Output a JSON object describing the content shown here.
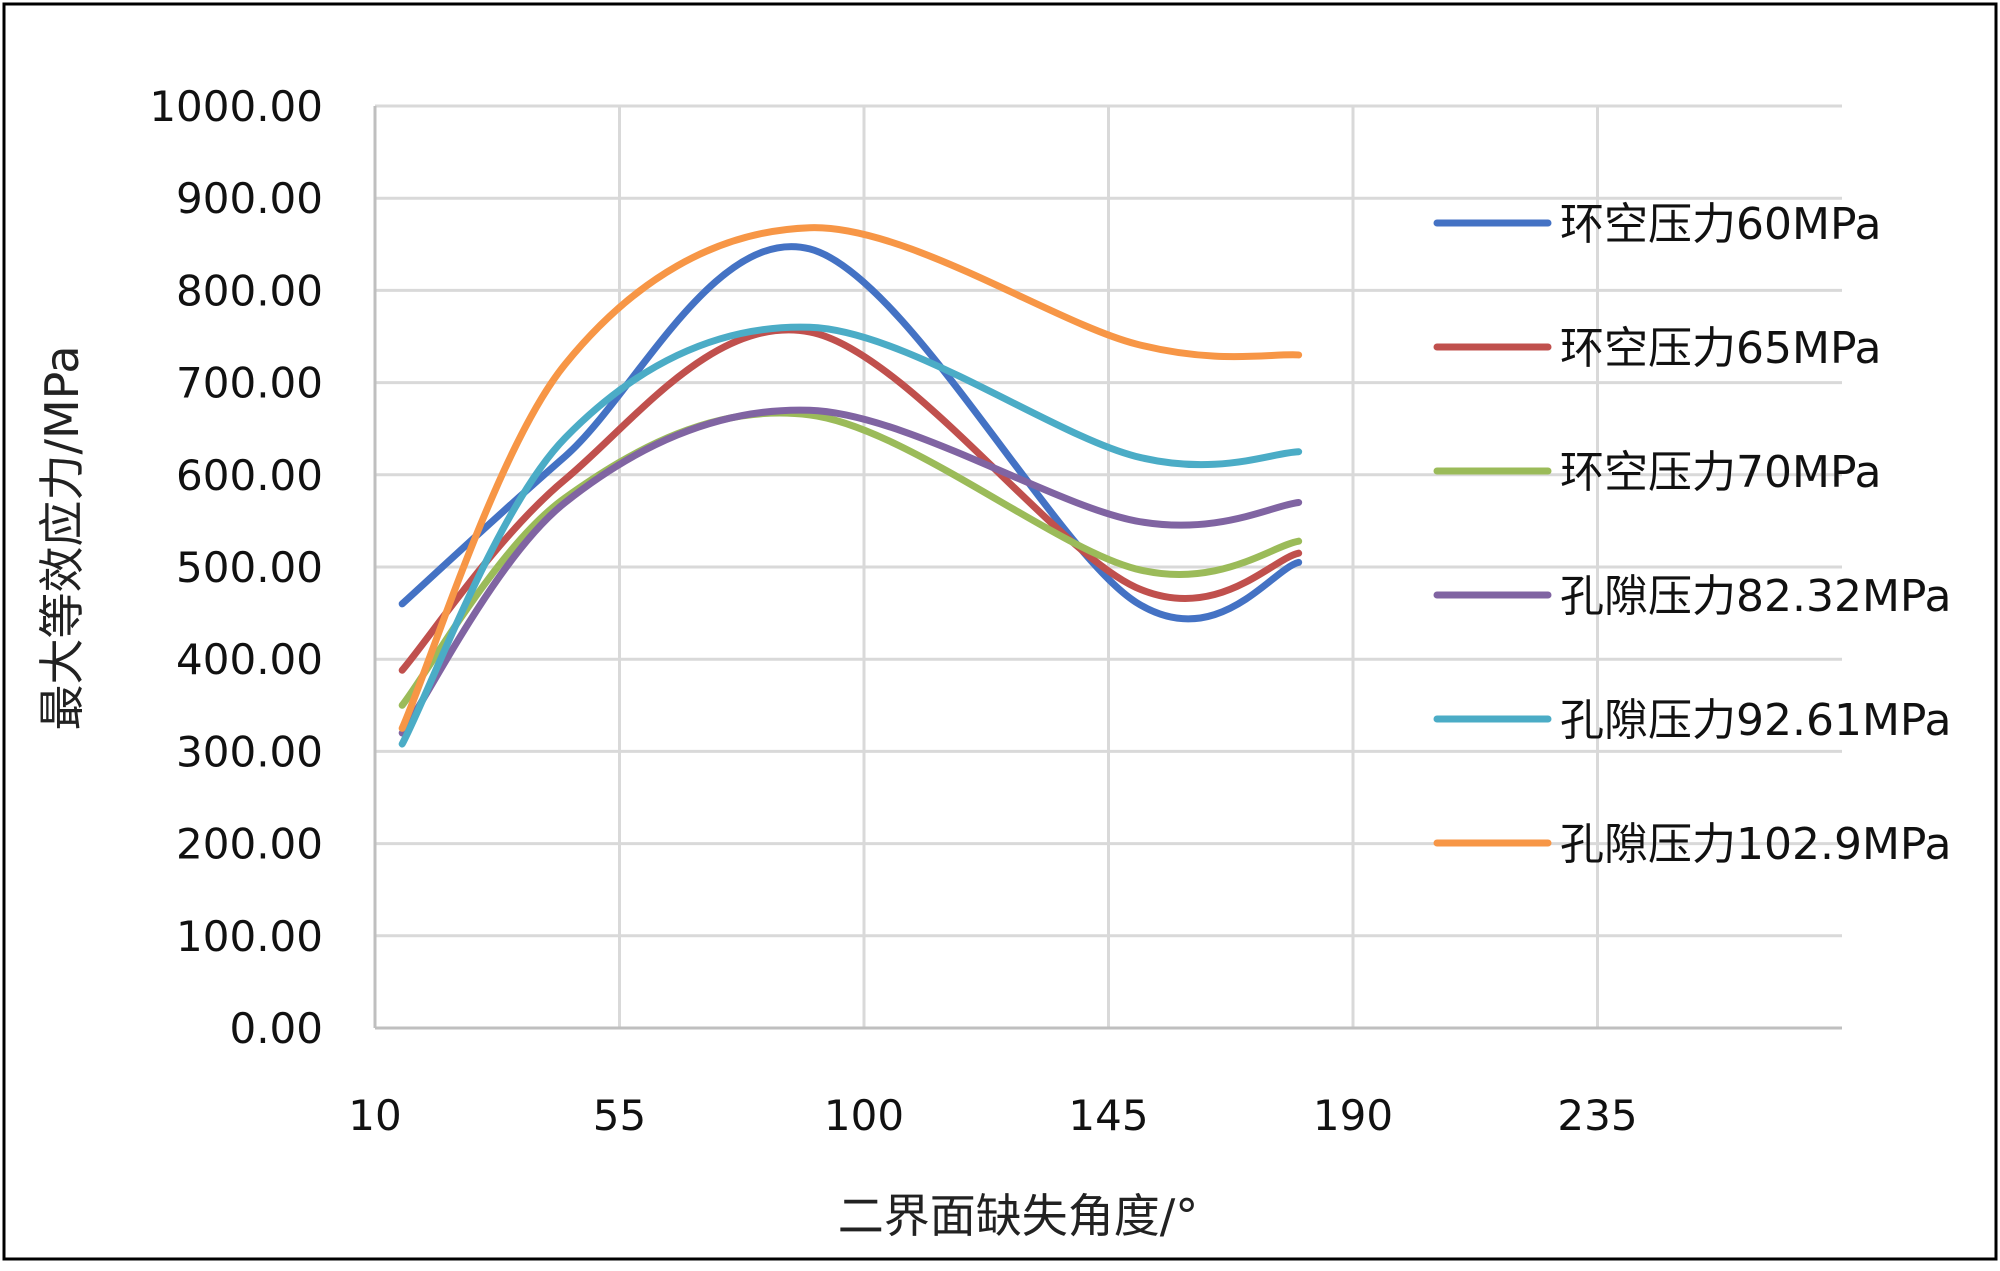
{
  "chart_data": {
    "type": "line",
    "title": "",
    "xlabel": "二界面缺失角度/°",
    "ylabel": "最大等效应力/MPa",
    "x": [
      15,
      45,
      90,
      150,
      180
    ],
    "xlim": [
      10,
      280
    ],
    "ylim": [
      0,
      1000
    ],
    "x_ticks": [
      "10",
      "55",
      "100",
      "145",
      "190",
      "235"
    ],
    "y_ticks": [
      "0.00",
      "100.00",
      "200.00",
      "300.00",
      "400.00",
      "500.00",
      "600.00",
      "700.00",
      "800.00",
      "900.00",
      "1000.00"
    ],
    "grid": true,
    "legend_position": "right",
    "series": [
      {
        "name": "环空压力60MPa",
        "color": "#4472C4",
        "values": [
          460,
          620,
          845,
          462,
          505
        ]
      },
      {
        "name": "环空压力65MPa",
        "color": "#C0504D",
        "values": [
          388,
          595,
          755,
          478,
          515
        ]
      },
      {
        "name": "环空压力70MPa",
        "color": "#9BBB59",
        "values": [
          350,
          575,
          665,
          498,
          528
        ]
      },
      {
        "name": "孔隙压力82.32MPa",
        "color": "#8064A2",
        "values": [
          320,
          570,
          670,
          550,
          570
        ]
      },
      {
        "name": "孔隙压力92.61MPa",
        "color": "#4BACC6",
        "values": [
          308,
          640,
          760,
          620,
          625
        ]
      },
      {
        "name": "孔隙压力102.9MPa",
        "color": "#F79646",
        "values": [
          325,
          720,
          868,
          742,
          730
        ]
      }
    ]
  }
}
